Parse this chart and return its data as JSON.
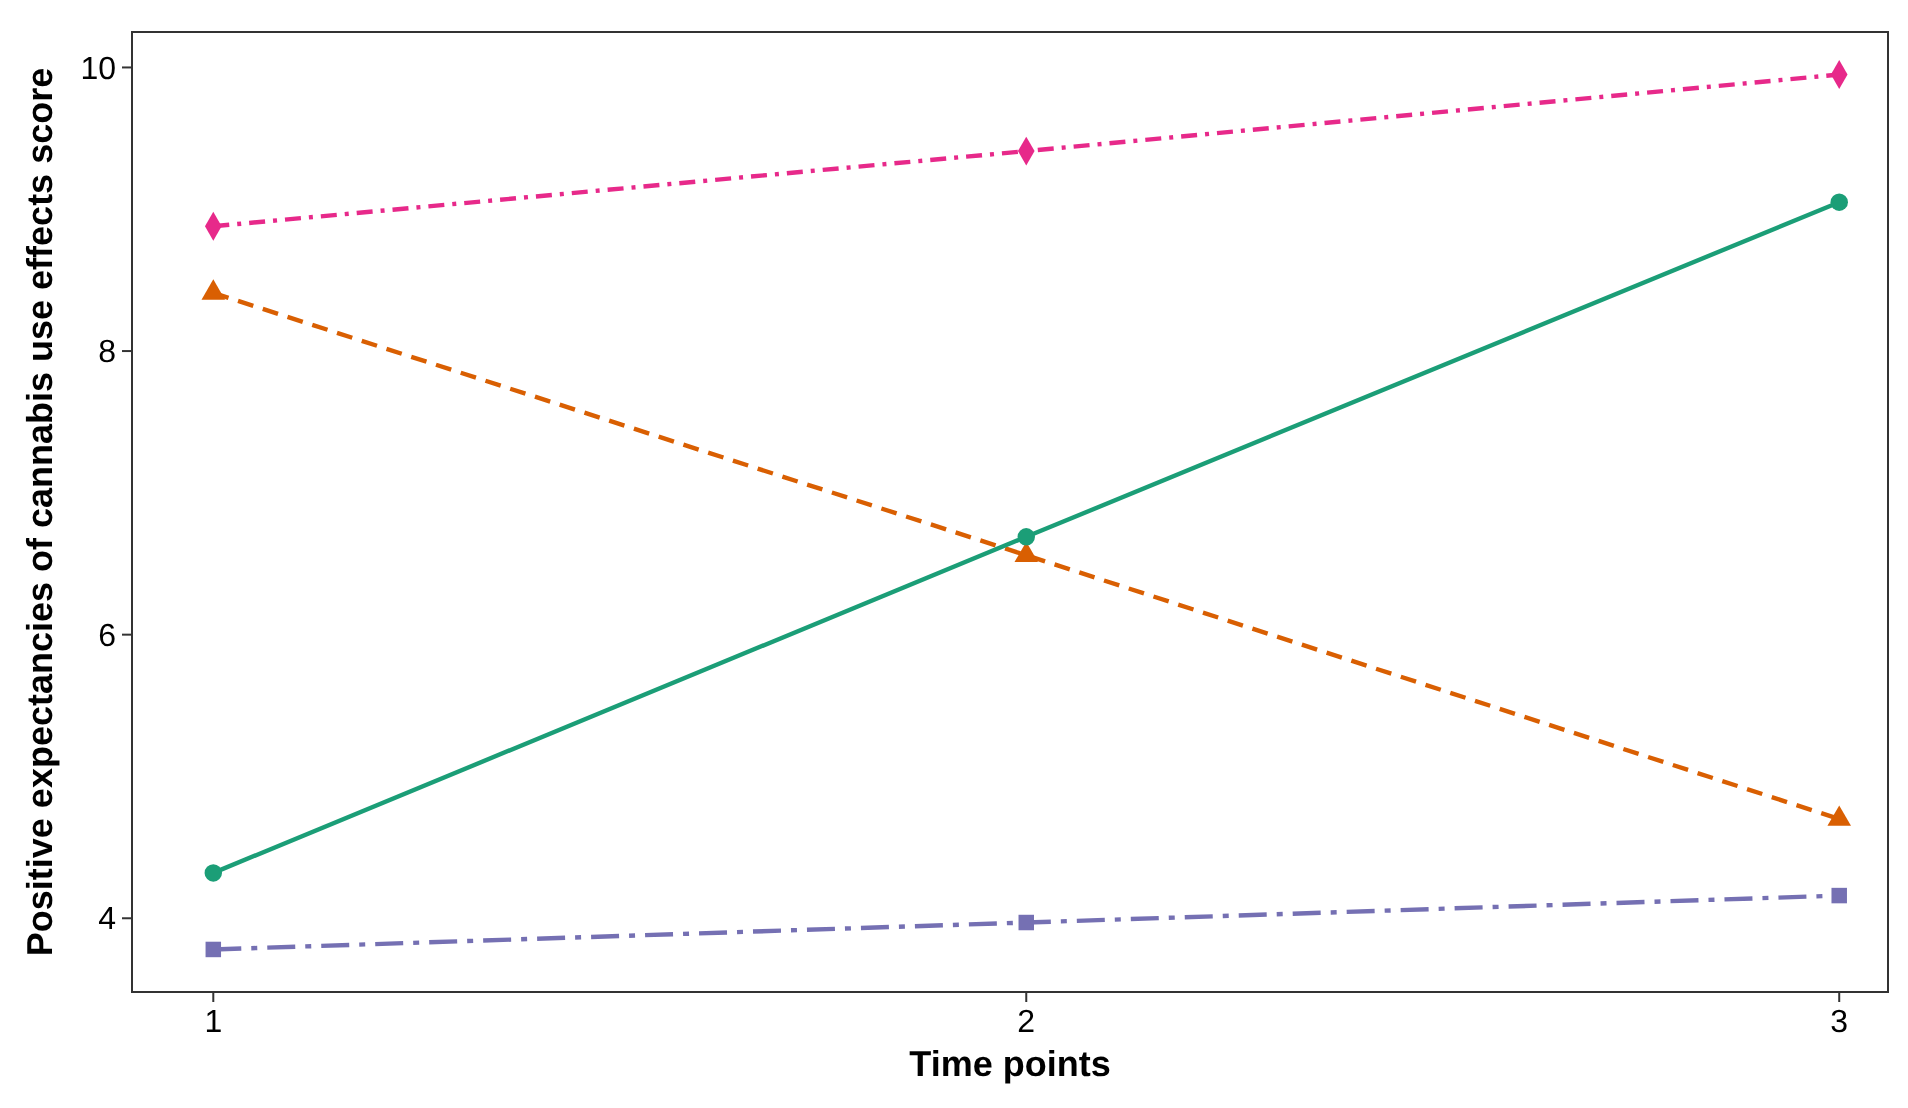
{
  "chart_data": {
    "type": "line",
    "xlabel": "Time points",
    "ylabel": "Positive expectancies of cannabis use effects score",
    "x": [
      1,
      2,
      3
    ],
    "xlim": [
      0.9,
      3.06
    ],
    "xticks": [
      1,
      2,
      3
    ],
    "ylim": [
      3.48,
      10.25
    ],
    "yticks": [
      4,
      6,
      8,
      10
    ],
    "grid": false,
    "series": [
      {
        "color": "#e7298a",
        "values": [
          8.88,
          9.41,
          9.95
        ],
        "marker": "diamond",
        "line_style": "dashdot"
      },
      {
        "color": "#d95f02",
        "values": [
          8.41,
          6.56,
          4.7
        ],
        "marker": "triangle",
        "line_style": "dashed"
      },
      {
        "color": "#1b9e77",
        "values": [
          4.32,
          6.69,
          9.05
        ],
        "marker": "circle",
        "line_style": "solid"
      },
      {
        "color": "#7570b3",
        "values": [
          3.78,
          3.97,
          4.16
        ],
        "marker": "square",
        "line_style": "longdashdot"
      }
    ]
  }
}
